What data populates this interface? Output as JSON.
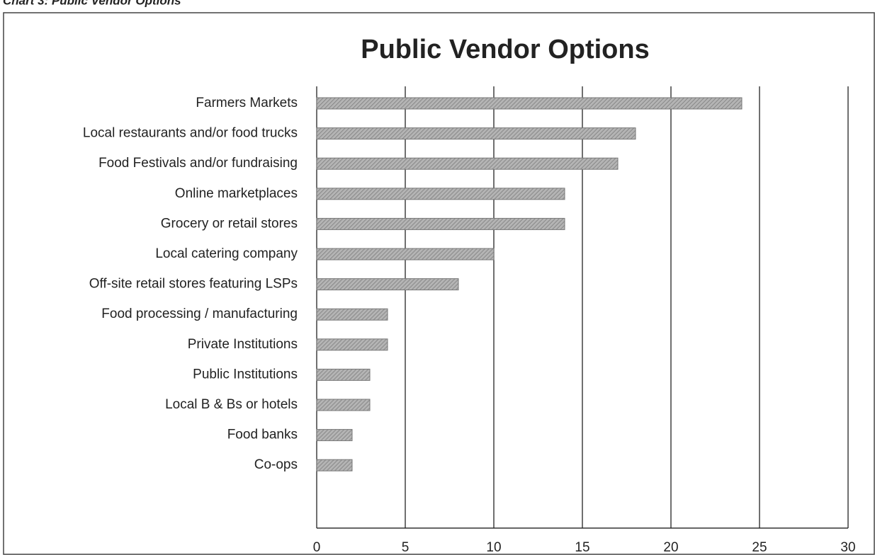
{
  "chart_data": {
    "type": "bar",
    "orientation": "horizontal",
    "caption": "Chart 3: Public Vendor Options",
    "title": "Public Vendor Options",
    "categories": [
      "Farmers Markets",
      "Local restaurants and/or food trucks",
      "Food Festivals and/or fundraising",
      "Online marketplaces",
      "Grocery or retail stores",
      "Local catering company",
      "Off-site retail stores featuring LSPs",
      "Food processing / manufacturing",
      "Private Institutions",
      "Public Institutions",
      "Local B & Bs or hotels",
      "Food banks",
      "Co-ops"
    ],
    "values": [
      24,
      18,
      17,
      14,
      14,
      10,
      8,
      4,
      4,
      3,
      3,
      2,
      2
    ],
    "color": "#a3a3a3",
    "xlim": [
      0,
      30
    ],
    "xticks": [
      0,
      5,
      10,
      15,
      20,
      25,
      30
    ],
    "grid": true
  }
}
